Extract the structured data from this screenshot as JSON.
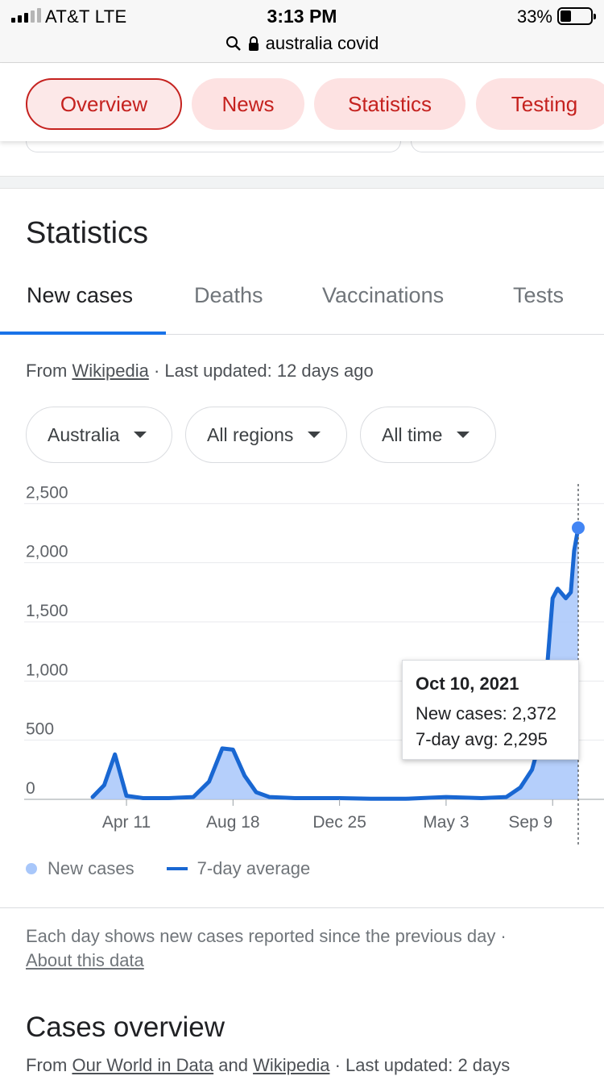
{
  "status_bar": {
    "carrier": "AT&T   LTE",
    "time": "3:13 PM",
    "battery": "33%",
    "url": "australia covid"
  },
  "chips": [
    "Overview",
    "News",
    "Statistics",
    "Testing"
  ],
  "section_title": "Statistics",
  "tabs": [
    "New cases",
    "Deaths",
    "Vaccinations",
    "Tests"
  ],
  "source": {
    "prefix": "From",
    "link": "Wikipedia",
    "updated": "· Last updated: 12 days ago"
  },
  "filters": [
    "Australia",
    "All regions",
    "All time"
  ],
  "tooltip": {
    "date": "Oct 10, 2021",
    "new_cases": "New cases: 2,372",
    "avg": "7-day avg: 2,295"
  },
  "legend": {
    "new_cases": "New cases",
    "avg": "7-day average"
  },
  "footnote": {
    "text": "Each day shows new cases reported since the previous day  ·",
    "link": "About this data"
  },
  "cases_overview": {
    "title": "Cases overview",
    "prefix": "From",
    "link1": "Our World in Data",
    "and": "and",
    "link2": "Wikipedia",
    "updated": "· Last updated: 2 days"
  },
  "colors": {
    "accent": "#c5221f",
    "blue": "#1967d2",
    "bars": "#a8c7fa"
  },
  "chart_data": {
    "type": "area",
    "x": [
      "2020-03-01",
      "2020-03-15",
      "2020-03-28",
      "2020-04-11",
      "2020-05-01",
      "2020-06-01",
      "2020-07-01",
      "2020-07-20",
      "2020-08-05",
      "2020-08-18",
      "2020-09-01",
      "2020-09-15",
      "2020-10-01",
      "2020-11-01",
      "2020-12-25",
      "2021-02-01",
      "2021-03-15",
      "2021-05-03",
      "2021-06-15",
      "2021-07-15",
      "2021-08-01",
      "2021-08-15",
      "2021-08-25",
      "2021-09-01",
      "2021-09-09",
      "2021-09-15",
      "2021-09-25",
      "2021-10-01",
      "2021-10-05",
      "2021-10-10"
    ],
    "series": [
      {
        "name": "7-day average",
        "values": [
          20,
          120,
          380,
          30,
          10,
          10,
          20,
          150,
          430,
          420,
          200,
          60,
          20,
          10,
          10,
          5,
          5,
          20,
          10,
          20,
          100,
          250,
          500,
          1000,
          1700,
          1780,
          1700,
          1750,
          2100,
          2295
        ]
      }
    ],
    "ylim": [
      0,
      2700
    ],
    "yticks": [
      "2,500",
      "2,000",
      "1,500",
      "1,000",
      "500",
      "0"
    ],
    "xticks": [
      "Apr 11",
      "Aug 18",
      "Dec 25",
      "May 3",
      "Sep 9"
    ]
  }
}
